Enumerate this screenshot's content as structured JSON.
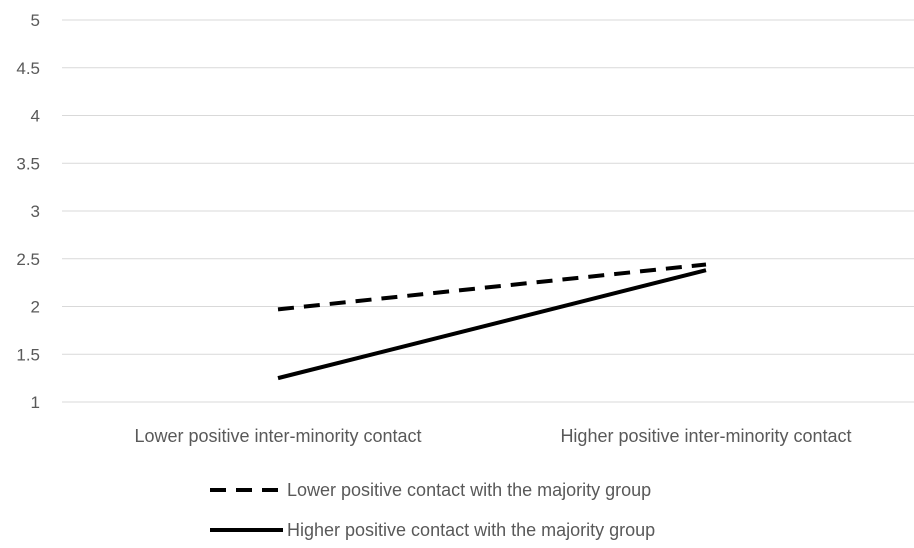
{
  "chart_data": {
    "type": "line",
    "categories": [
      "Lower positive inter-minority contact",
      "Higher positive inter-minority contact"
    ],
    "series": [
      {
        "name": "Lower positive contact with the majority group",
        "values": [
          1.97,
          2.44
        ],
        "line_style": "dashed",
        "color": "#000000"
      },
      {
        "name": "Higher positive contact with the majority group",
        "values": [
          1.25,
          2.38
        ],
        "line_style": "solid",
        "color": "#000000"
      }
    ],
    "y_ticks": [
      "1",
      "1.5",
      "2",
      "2.5",
      "3",
      "3.5",
      "4",
      "4.5",
      "5"
    ],
    "ylim": [
      1,
      5
    ],
    "grid": true,
    "legend_position": "bottom",
    "title": "",
    "xlabel": "",
    "ylabel": ""
  }
}
